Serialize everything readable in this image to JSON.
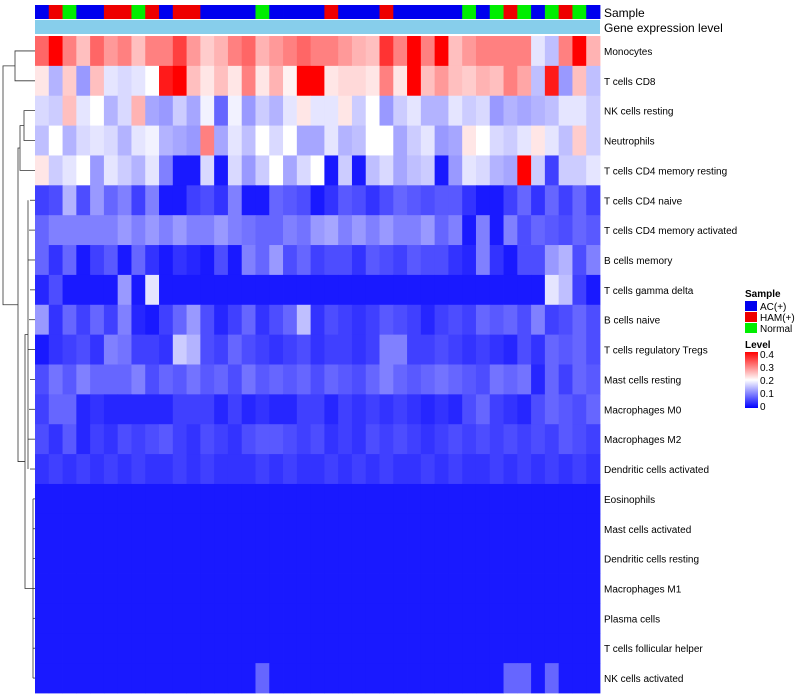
{
  "chart_data": {
    "type": "heatmap",
    "title": "",
    "annotation_labels": {
      "sample": "Sample",
      "expression": "Gene expression level"
    },
    "sample_groups": [
      "A",
      "H",
      "N",
      "A",
      "A",
      "H",
      "H",
      "N",
      "H",
      "A",
      "H",
      "H",
      "A",
      "A",
      "A",
      "A",
      "N",
      "A",
      "A",
      "A",
      "A",
      "H",
      "A",
      "A",
      "A",
      "H",
      "A",
      "A",
      "A",
      "A",
      "A",
      "N",
      "A",
      "N",
      "H",
      "N",
      "A",
      "N",
      "H",
      "N",
      "A"
    ],
    "group_names": {
      "A": "AC(+)",
      "H": "HAM(+)",
      "N": "Normal"
    },
    "colors": {
      "groups": {
        "A": "#0000ee",
        "H": "#ee0000",
        "N": "#00ee00"
      },
      "expression_bar": "#87ceeb",
      "low": "#0000ff",
      "mid": "#ffffff",
      "high": "#ff0000",
      "dendrogram": "#333333"
    },
    "rows": [
      "Monocytes",
      "T cells CD8",
      "NK cells resting",
      "Neutrophils",
      "T cells CD4 memory resting",
      "T cells CD4 naive",
      "T cells CD4 memory activated",
      "B cells memory",
      "T cells gamma delta",
      "B cells naive",
      "T cells regulatory  Tregs",
      "Mast cells resting",
      "Macrophages M0",
      "Macrophages M2",
      "Dendritic cells activated",
      "Eosinophils",
      "Mast cells activated",
      "Dendritic cells resting",
      "Macrophages M1",
      "Plasma cells",
      "T cells follicular helper",
      "NK cells activated"
    ],
    "values": [
      [
        0.32,
        0.4,
        0.3,
        0.25,
        0.32,
        0.28,
        0.3,
        0.25,
        0.3,
        0.3,
        0.35,
        0.28,
        0.24,
        0.26,
        0.3,
        0.32,
        0.26,
        0.28,
        0.3,
        0.32,
        0.3,
        0.3,
        0.28,
        0.26,
        0.25,
        0.36,
        0.3,
        0.4,
        0.3,
        0.4,
        0.25,
        0.28,
        0.3,
        0.3,
        0.3,
        0.3,
        0.18,
        0.15,
        0.3,
        0.4,
        0.26
      ],
      [
        0.22,
        0.14,
        0.24,
        0.12,
        0.25,
        0.18,
        0.17,
        0.18,
        0.2,
        0.38,
        0.4,
        0.25,
        0.22,
        0.25,
        0.22,
        0.3,
        0.22,
        0.26,
        0.21,
        0.4,
        0.4,
        0.22,
        0.23,
        0.23,
        0.22,
        0.3,
        0.22,
        0.4,
        0.25,
        0.28,
        0.25,
        0.24,
        0.26,
        0.25,
        0.3,
        0.27,
        0.15,
        0.38,
        0.12,
        0.25,
        0.15
      ],
      [
        0.17,
        0.16,
        0.25,
        0.18,
        0.2,
        0.14,
        0.17,
        0.26,
        0.13,
        0.12,
        0.16,
        0.13,
        0.19,
        0.08,
        0.19,
        0.12,
        0.16,
        0.14,
        0.18,
        0.22,
        0.18,
        0.18,
        0.22,
        0.16,
        0.2,
        0.12,
        0.16,
        0.18,
        0.14,
        0.14,
        0.18,
        0.16,
        0.17,
        0.12,
        0.14,
        0.13,
        0.14,
        0.15,
        0.18,
        0.18,
        0.16
      ],
      [
        0.15,
        0.2,
        0.14,
        0.17,
        0.18,
        0.17,
        0.14,
        0.18,
        0.19,
        0.14,
        0.13,
        0.12,
        0.3,
        0.13,
        0.18,
        0.15,
        0.2,
        0.17,
        0.2,
        0.13,
        0.13,
        0.18,
        0.14,
        0.15,
        0.2,
        0.2,
        0.13,
        0.16,
        0.18,
        0.12,
        0.13,
        0.22,
        0.2,
        0.17,
        0.16,
        0.18,
        0.22,
        0.18,
        0.15,
        0.24,
        0.16
      ],
      [
        0.22,
        0.16,
        0.18,
        0.2,
        0.12,
        0.18,
        0.16,
        0.14,
        0.18,
        0.1,
        0.02,
        0.02,
        0.17,
        0.02,
        0.17,
        0.12,
        0.16,
        0.2,
        0.13,
        0.17,
        0.2,
        0.02,
        0.16,
        0.02,
        0.15,
        0.17,
        0.13,
        0.15,
        0.16,
        0.02,
        0.12,
        0.18,
        0.17,
        0.14,
        0.13,
        0.4,
        0.16,
        0.05,
        0.16,
        0.16,
        0.18
      ],
      [
        0.05,
        0.06,
        0.14,
        0.06,
        0.12,
        0.08,
        0.1,
        0.05,
        0.1,
        0.02,
        0.02,
        0.05,
        0.06,
        0.04,
        0.1,
        0.02,
        0.02,
        0.08,
        0.07,
        0.06,
        0.02,
        0.04,
        0.07,
        0.06,
        0.04,
        0.06,
        0.08,
        0.07,
        0.06,
        0.07,
        0.07,
        0.04,
        0.02,
        0.02,
        0.05,
        0.08,
        0.04,
        0.08,
        0.05,
        0.08,
        0.05
      ],
      [
        0.08,
        0.1,
        0.1,
        0.1,
        0.1,
        0.1,
        0.12,
        0.1,
        0.12,
        0.1,
        0.12,
        0.1,
        0.1,
        0.12,
        0.1,
        0.09,
        0.08,
        0.08,
        0.1,
        0.09,
        0.12,
        0.13,
        0.1,
        0.12,
        0.1,
        0.12,
        0.1,
        0.1,
        0.12,
        0.08,
        0.1,
        0.02,
        0.1,
        0.02,
        0.1,
        0.06,
        0.08,
        0.07,
        0.06,
        0.08,
        0.07
      ],
      [
        0.08,
        0.04,
        0.08,
        0.02,
        0.05,
        0.07,
        0.02,
        0.08,
        0.04,
        0.02,
        0.04,
        0.03,
        0.02,
        0.06,
        0.02,
        0.1,
        0.08,
        0.12,
        0.06,
        0.08,
        0.05,
        0.06,
        0.06,
        0.04,
        0.07,
        0.06,
        0.05,
        0.07,
        0.06,
        0.06,
        0.04,
        0.03,
        0.1,
        0.04,
        0.02,
        0.06,
        0.06,
        0.12,
        0.14,
        0.06,
        0.1
      ],
      [
        0.03,
        0.06,
        0.02,
        0.02,
        0.02,
        0.02,
        0.12,
        0.02,
        0.18,
        0.02,
        0.02,
        0.02,
        0.02,
        0.02,
        0.02,
        0.02,
        0.02,
        0.02,
        0.02,
        0.02,
        0.02,
        0.02,
        0.02,
        0.02,
        0.02,
        0.02,
        0.02,
        0.02,
        0.02,
        0.02,
        0.02,
        0.02,
        0.02,
        0.02,
        0.02,
        0.02,
        0.02,
        0.18,
        0.15,
        0.05,
        0.02
      ],
      [
        0.12,
        0.04,
        0.08,
        0.05,
        0.08,
        0.05,
        0.1,
        0.03,
        0.02,
        0.05,
        0.08,
        0.12,
        0.06,
        0.03,
        0.05,
        0.08,
        0.04,
        0.06,
        0.08,
        0.15,
        0.04,
        0.06,
        0.05,
        0.04,
        0.05,
        0.07,
        0.06,
        0.05,
        0.03,
        0.05,
        0.06,
        0.05,
        0.08,
        0.07,
        0.08,
        0.06,
        0.1,
        0.05,
        0.06,
        0.08,
        0.06
      ],
      [
        0.02,
        0.04,
        0.05,
        0.06,
        0.04,
        0.1,
        0.09,
        0.05,
        0.05,
        0.04,
        0.16,
        0.14,
        0.06,
        0.05,
        0.08,
        0.06,
        0.05,
        0.04,
        0.05,
        0.06,
        0.04,
        0.05,
        0.05,
        0.04,
        0.05,
        0.1,
        0.1,
        0.05,
        0.05,
        0.06,
        0.05,
        0.04,
        0.05,
        0.04,
        0.03,
        0.06,
        0.04,
        0.08,
        0.07,
        0.08,
        0.06
      ],
      [
        0.06,
        0.09,
        0.07,
        0.1,
        0.08,
        0.08,
        0.08,
        0.1,
        0.06,
        0.08,
        0.07,
        0.09,
        0.07,
        0.08,
        0.06,
        0.09,
        0.07,
        0.08,
        0.07,
        0.08,
        0.06,
        0.08,
        0.07,
        0.06,
        0.08,
        0.1,
        0.08,
        0.07,
        0.08,
        0.09,
        0.08,
        0.07,
        0.06,
        0.09,
        0.08,
        0.09,
        0.03,
        0.08,
        0.05,
        0.08,
        0.07
      ],
      [
        0.05,
        0.08,
        0.08,
        0.03,
        0.04,
        0.03,
        0.03,
        0.03,
        0.03,
        0.03,
        0.05,
        0.05,
        0.05,
        0.03,
        0.05,
        0.03,
        0.04,
        0.03,
        0.03,
        0.05,
        0.05,
        0.03,
        0.05,
        0.04,
        0.05,
        0.04,
        0.05,
        0.04,
        0.03,
        0.04,
        0.03,
        0.06,
        0.08,
        0.05,
        0.04,
        0.03,
        0.06,
        0.08,
        0.07,
        0.06,
        0.08
      ],
      [
        0.06,
        0.04,
        0.07,
        0.03,
        0.05,
        0.04,
        0.06,
        0.05,
        0.06,
        0.07,
        0.05,
        0.04,
        0.06,
        0.05,
        0.04,
        0.06,
        0.07,
        0.07,
        0.06,
        0.05,
        0.06,
        0.04,
        0.05,
        0.04,
        0.06,
        0.05,
        0.06,
        0.05,
        0.04,
        0.05,
        0.06,
        0.05,
        0.06,
        0.05,
        0.06,
        0.05,
        0.06,
        0.05,
        0.07,
        0.06,
        0.05
      ],
      [
        0.04,
        0.05,
        0.04,
        0.05,
        0.04,
        0.05,
        0.04,
        0.05,
        0.04,
        0.04,
        0.05,
        0.04,
        0.05,
        0.04,
        0.04,
        0.04,
        0.05,
        0.04,
        0.05,
        0.04,
        0.04,
        0.05,
        0.04,
        0.05,
        0.04,
        0.05,
        0.04,
        0.04,
        0.05,
        0.04,
        0.05,
        0.04,
        0.04,
        0.05,
        0.04,
        0.05,
        0.04,
        0.05,
        0.04,
        0.05,
        0.04
      ],
      [
        0.02,
        0.02,
        0.02,
        0.02,
        0.02,
        0.02,
        0.02,
        0.02,
        0.02,
        0.02,
        0.02,
        0.02,
        0.02,
        0.02,
        0.02,
        0.02,
        0.02,
        0.02,
        0.02,
        0.02,
        0.02,
        0.02,
        0.02,
        0.02,
        0.02,
        0.02,
        0.02,
        0.02,
        0.02,
        0.02,
        0.02,
        0.02,
        0.02,
        0.02,
        0.02,
        0.02,
        0.02,
        0.02,
        0.02,
        0.02,
        0.02
      ],
      [
        0.02,
        0.02,
        0.02,
        0.02,
        0.02,
        0.02,
        0.02,
        0.02,
        0.02,
        0.02,
        0.02,
        0.02,
        0.02,
        0.02,
        0.02,
        0.02,
        0.02,
        0.02,
        0.02,
        0.02,
        0.02,
        0.02,
        0.02,
        0.02,
        0.02,
        0.02,
        0.02,
        0.02,
        0.02,
        0.02,
        0.02,
        0.02,
        0.02,
        0.02,
        0.02,
        0.02,
        0.02,
        0.02,
        0.02,
        0.02,
        0.02
      ],
      [
        0.02,
        0.02,
        0.02,
        0.02,
        0.02,
        0.02,
        0.02,
        0.02,
        0.02,
        0.02,
        0.02,
        0.02,
        0.02,
        0.02,
        0.02,
        0.02,
        0.02,
        0.02,
        0.02,
        0.02,
        0.02,
        0.02,
        0.02,
        0.02,
        0.02,
        0.02,
        0.02,
        0.02,
        0.02,
        0.02,
        0.02,
        0.02,
        0.02,
        0.02,
        0.02,
        0.02,
        0.02,
        0.02,
        0.02,
        0.02,
        0.02
      ],
      [
        0.02,
        0.02,
        0.02,
        0.02,
        0.02,
        0.02,
        0.02,
        0.02,
        0.02,
        0.02,
        0.02,
        0.02,
        0.02,
        0.02,
        0.02,
        0.02,
        0.02,
        0.02,
        0.02,
        0.02,
        0.02,
        0.02,
        0.02,
        0.02,
        0.02,
        0.02,
        0.02,
        0.02,
        0.02,
        0.02,
        0.02,
        0.02,
        0.02,
        0.02,
        0.02,
        0.02,
        0.02,
        0.02,
        0.02,
        0.02,
        0.02
      ],
      [
        0.02,
        0.02,
        0.02,
        0.02,
        0.02,
        0.02,
        0.02,
        0.02,
        0.02,
        0.02,
        0.02,
        0.02,
        0.02,
        0.02,
        0.02,
        0.02,
        0.02,
        0.02,
        0.02,
        0.02,
        0.02,
        0.02,
        0.02,
        0.02,
        0.02,
        0.02,
        0.02,
        0.02,
        0.02,
        0.02,
        0.02,
        0.02,
        0.02,
        0.02,
        0.02,
        0.02,
        0.02,
        0.02,
        0.02,
        0.02,
        0.02
      ],
      [
        0.02,
        0.02,
        0.02,
        0.02,
        0.02,
        0.02,
        0.02,
        0.02,
        0.02,
        0.02,
        0.02,
        0.02,
        0.02,
        0.02,
        0.02,
        0.02,
        0.02,
        0.02,
        0.02,
        0.02,
        0.02,
        0.02,
        0.02,
        0.02,
        0.02,
        0.02,
        0.02,
        0.02,
        0.02,
        0.02,
        0.02,
        0.02,
        0.02,
        0.02,
        0.02,
        0.02,
        0.02,
        0.02,
        0.02,
        0.02,
        0.02
      ],
      [
        0.02,
        0.02,
        0.02,
        0.02,
        0.02,
        0.02,
        0.02,
        0.02,
        0.02,
        0.02,
        0.02,
        0.02,
        0.02,
        0.02,
        0.02,
        0.02,
        0.08,
        0.02,
        0.02,
        0.02,
        0.02,
        0.02,
        0.02,
        0.02,
        0.02,
        0.02,
        0.02,
        0.02,
        0.02,
        0.02,
        0.02,
        0.02,
        0.02,
        0.02,
        0.08,
        0.08,
        0.02,
        0.08,
        0.02,
        0.02,
        0.02
      ]
    ],
    "legend": {
      "sample_title": "Sample",
      "level_title": "Level",
      "level_ticks": [
        "0.4",
        "0.3",
        "0.2",
        "0.1",
        "0"
      ],
      "range": [
        0,
        0.4
      ],
      "position": "right"
    }
  }
}
